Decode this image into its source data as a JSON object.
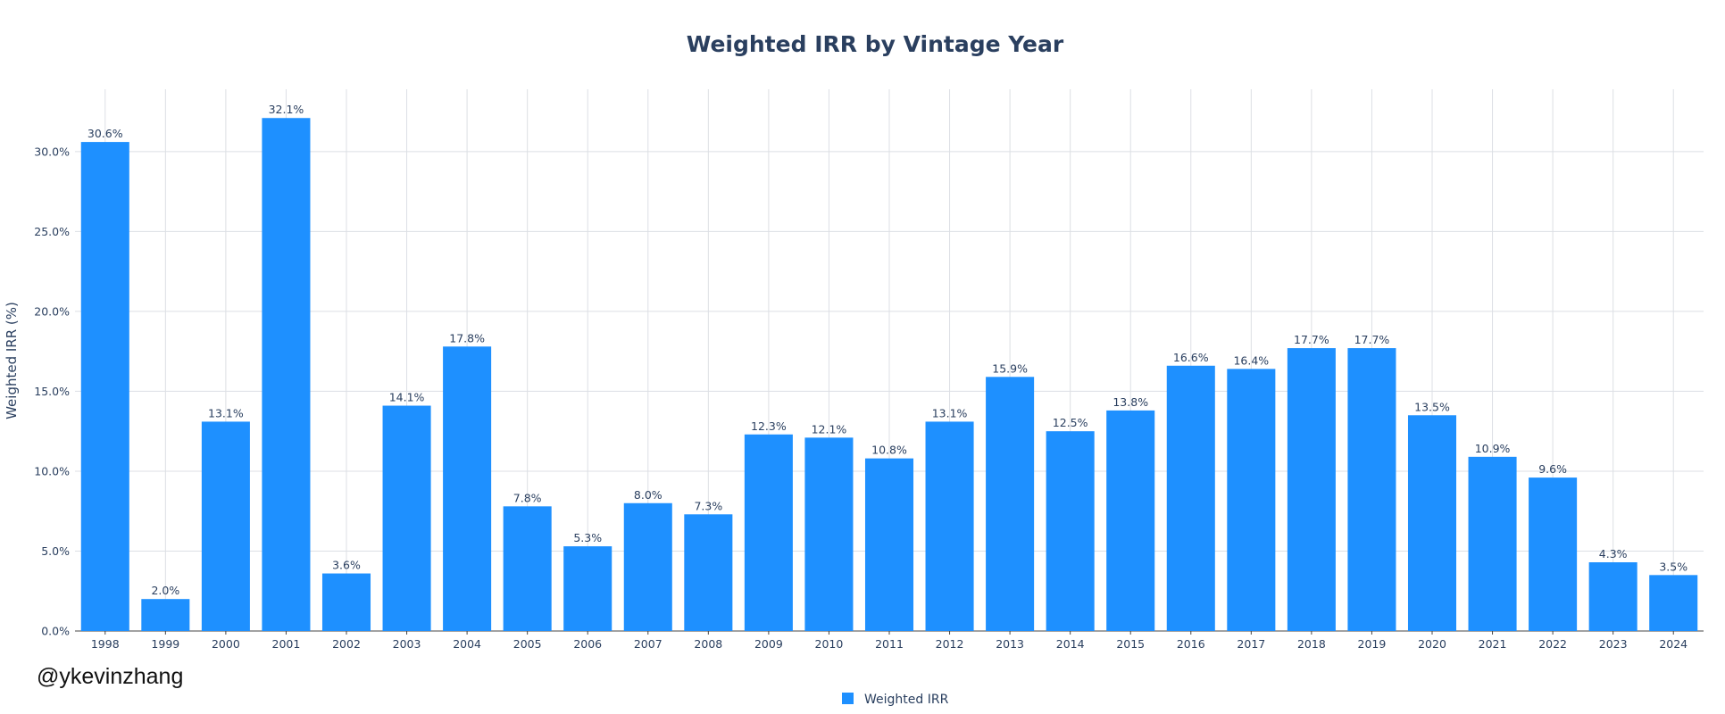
{
  "chart_data": {
    "type": "bar",
    "title": "Weighted IRR by Vintage Year",
    "xlabel": "",
    "ylabel": "Weighted IRR (%)",
    "ylim": [
      0,
      33.9
    ],
    "y_ticks": [
      0,
      5,
      10,
      15,
      20,
      25,
      30
    ],
    "y_tick_labels": [
      "0.0%",
      "5.0%",
      "10.0%",
      "15.0%",
      "20.0%",
      "25.0%",
      "30.0%"
    ],
    "grid": true,
    "legend_position": "bottom-center",
    "categories": [
      "1998",
      "1999",
      "2000",
      "2001",
      "2002",
      "2003",
      "2004",
      "2005",
      "2006",
      "2007",
      "2008",
      "2009",
      "2010",
      "2011",
      "2012",
      "2013",
      "2014",
      "2015",
      "2016",
      "2017",
      "2018",
      "2019",
      "2020",
      "2021",
      "2022",
      "2023",
      "2024"
    ],
    "series": [
      {
        "name": "Weighted IRR",
        "color": "#1e90ff",
        "values": [
          30.6,
          2.0,
          13.1,
          32.1,
          3.6,
          14.1,
          17.8,
          7.8,
          5.3,
          8.0,
          7.3,
          12.3,
          12.1,
          10.8,
          13.1,
          15.9,
          12.5,
          13.8,
          16.6,
          16.4,
          17.7,
          17.7,
          13.5,
          10.9,
          9.6,
          4.3,
          3.5
        ],
        "labels": [
          "30.6%",
          "2.0%",
          "13.1%",
          "32.1%",
          "3.6%",
          "14.1%",
          "17.8%",
          "7.8%",
          "5.3%",
          "8.0%",
          "7.3%",
          "12.3%",
          "12.1%",
          "10.8%",
          "13.1%",
          "15.9%",
          "12.5%",
          "13.8%",
          "16.6%",
          "16.4%",
          "17.7%",
          "17.7%",
          "13.5%",
          "10.9%",
          "9.6%",
          "4.3%",
          "3.5%"
        ]
      }
    ],
    "annotation": "@ykevinzhang"
  }
}
